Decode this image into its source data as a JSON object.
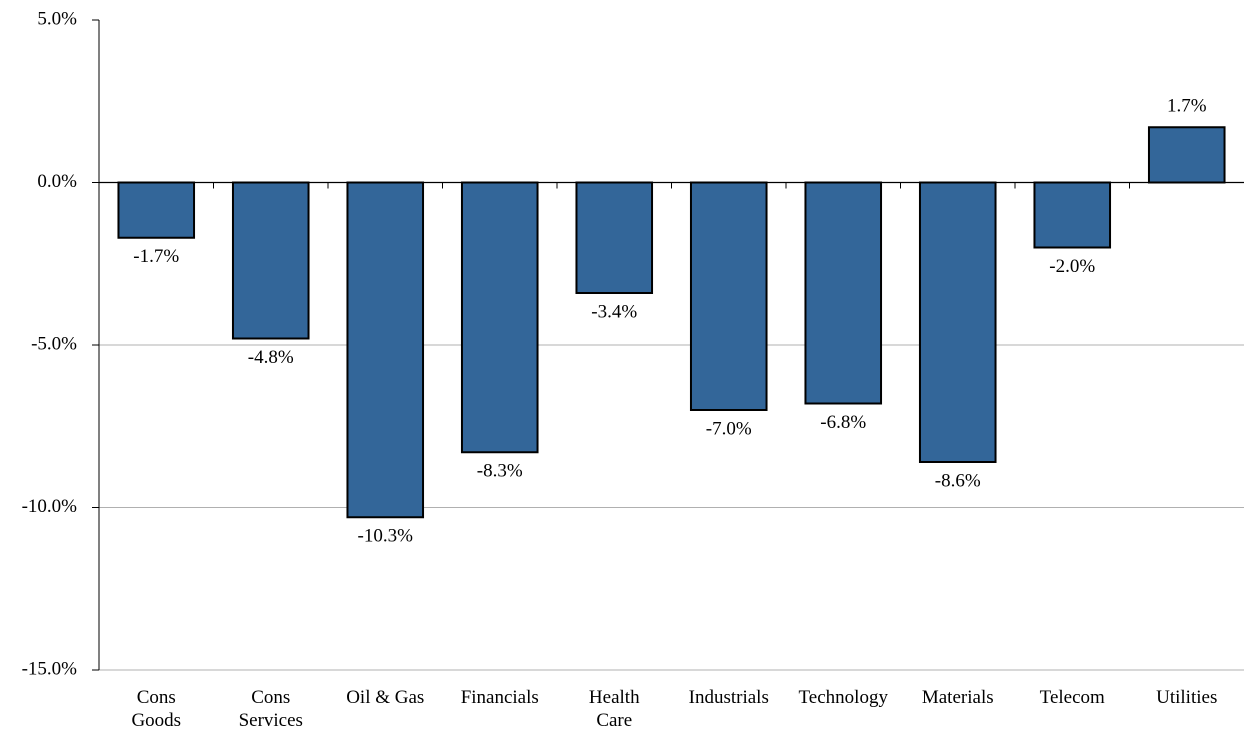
{
  "chart_data": {
    "type": "bar",
    "categories": [
      "Cons\nGoods",
      "Cons\nServices",
      "Oil & Gas",
      "Financials",
      "Health\nCare",
      "Industrials",
      "Technology",
      "Materials",
      "Telecom",
      "Utilities"
    ],
    "values": [
      -1.7,
      -4.8,
      -10.3,
      -8.3,
      -3.4,
      -7.0,
      -6.8,
      -8.6,
      -2.0,
      1.7
    ],
    "value_labels": [
      "-1.7%",
      "-4.8%",
      "-10.3%",
      "-8.3%",
      "-3.4%",
      "-7.0%",
      "-6.8%",
      "-8.6%",
      "-2.0%",
      "1.7%"
    ],
    "color": "#336699",
    "ylim": [
      -15,
      5
    ],
    "yticks": [
      {
        "value": -15,
        "label": "-15.0%"
      },
      {
        "value": -10,
        "label": "-10.0%"
      },
      {
        "value": -5,
        "label": "-5.0%"
      },
      {
        "value": 0,
        "label": "0.0%"
      },
      {
        "value": 5,
        "label": "5.0%"
      }
    ],
    "grid": true
  }
}
